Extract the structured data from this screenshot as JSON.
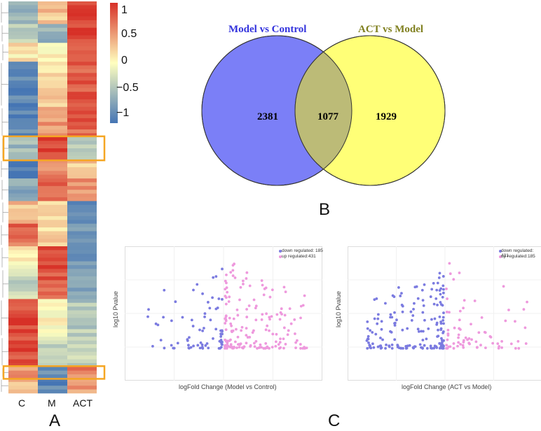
{
  "colors": {
    "high": "#d73027",
    "mid": "#ffffbf",
    "low": "#4575b4",
    "highlight_box": "#f5a623",
    "venn_left": "#7b7ff7",
    "venn_right": "#ffff77",
    "venn_overlap": "#bcbb77",
    "title_left": "#3333dd",
    "title_right": "#808020",
    "down": "#7b7be0",
    "up": "#ee99dd"
  },
  "panel_labels": {
    "a": "A",
    "b": "B",
    "c": "C"
  },
  "chart_data": [
    {
      "type": "heatmap",
      "title": "",
      "columns": [
        "C",
        "M",
        "ACT"
      ],
      "colorbar": {
        "ticks": [
          "1",
          "0.5",
          "0",
          "−0.5",
          "−1"
        ],
        "range": [
          -1,
          1
        ]
      },
      "blocks": [
        {
          "rows": 6,
          "values": [
            -0.5,
            0.3,
            0.95
          ]
        },
        {
          "rows": 5,
          "values": [
            -0.3,
            -0.6,
            0.9
          ]
        },
        {
          "rows": 5,
          "values": [
            0.1,
            0.0,
            0.85
          ]
        },
        {
          "rows": 12,
          "values": [
            -0.9,
            0.2,
            0.8
          ]
        },
        {
          "rows": 8,
          "values": [
            -0.85,
            0.5,
            0.75
          ]
        },
        {
          "rows": 6,
          "values": [
            -0.5,
            0.95,
            -0.3
          ]
        },
        {
          "rows": 5,
          "values": [
            -0.9,
            0.6,
            0.3
          ]
        },
        {
          "rows": 6,
          "values": [
            -0.6,
            0.8,
            0.5
          ]
        },
        {
          "rows": 6,
          "values": [
            0.3,
            0.1,
            -0.9
          ]
        },
        {
          "rows": 6,
          "values": [
            0.7,
            0.2,
            -0.8
          ]
        },
        {
          "rows": 6,
          "values": [
            0.0,
            0.9,
            -0.7
          ]
        },
        {
          "rows": 8,
          "values": [
            -0.3,
            0.8,
            -0.6
          ]
        },
        {
          "rows": 10,
          "values": [
            0.9,
            0.0,
            -0.4
          ]
        },
        {
          "rows": 8,
          "values": [
            0.85,
            -0.3,
            -0.3
          ]
        },
        {
          "rows": 3,
          "values": [
            0.5,
            -0.85,
            0.6
          ]
        },
        {
          "rows": 4,
          "values": [
            0.3,
            -0.9,
            0.5
          ]
        }
      ],
      "highlighted_block_indices": [
        5,
        14
      ]
    },
    {
      "type": "venn",
      "sets": [
        {
          "name": "Model vs Control",
          "only": "2381"
        },
        {
          "name": "ACT vs Model",
          "only": "1929"
        }
      ],
      "intersection": "1077"
    },
    {
      "type": "scatter",
      "name": "volcano-model-vs-control",
      "xlabel": "logFold Change (Model vs Control)",
      "ylabel": "log10 Pvalue",
      "legend": [
        "down regulated: 185",
        "up regulated:431"
      ],
      "down_count": 185,
      "up_count": 431
    },
    {
      "type": "scatter",
      "name": "volcano-act-vs-model",
      "xlabel": "logFold Change (ACT vs Model)",
      "ylabel": "log10 Pvalue",
      "legend": [
        "down regulated: 431",
        "up regulated:185"
      ],
      "down_count": 431,
      "up_count": 185
    }
  ]
}
